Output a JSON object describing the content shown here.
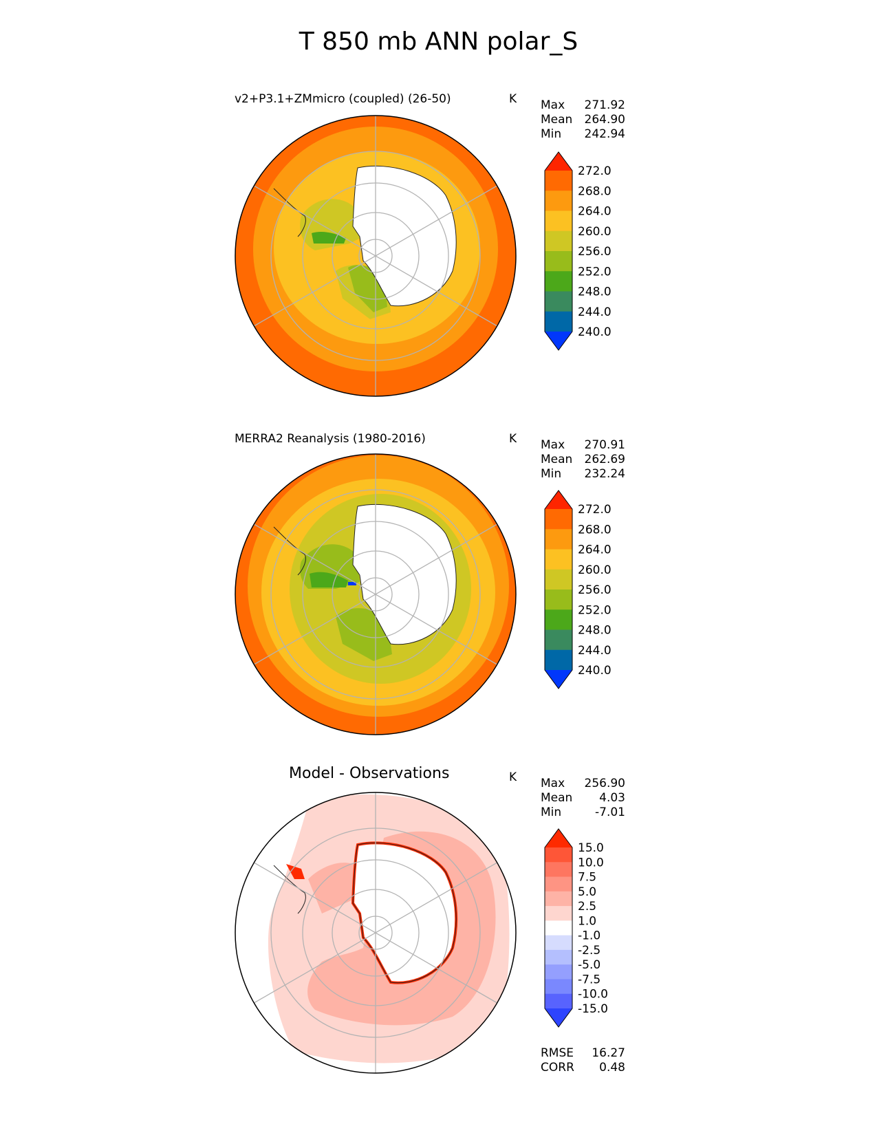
{
  "title": "T 850 mb ANN polar_S",
  "panels": [
    {
      "id": "test",
      "title": "v2+P3.1+ZMmicro (coupled) (26-50)",
      "units": "K",
      "stats": [
        {
          "label": "Max",
          "value": "271.92"
        },
        {
          "label": "Mean",
          "value": "264.90"
        },
        {
          "label": "Min",
          "value": "242.94"
        }
      ],
      "colorbar": {
        "labels": [
          "272.0",
          "268.0",
          "264.0",
          "260.0",
          "256.0",
          "252.0",
          "248.0",
          "244.0",
          "240.0"
        ],
        "colors": [
          "#fe2500",
          "#ff6a02",
          "#fd9a0f",
          "#fcc122",
          "#cfc724",
          "#98bc1b",
          "#4ca81a",
          "#3a8a5e",
          "#0068a7",
          "#0137fb"
        ]
      }
    },
    {
      "id": "reference",
      "title": "MERRA2 Reanalysis (1980-2016)",
      "units": "K",
      "stats": [
        {
          "label": "Max",
          "value": "270.91"
        },
        {
          "label": "Mean",
          "value": "262.69"
        },
        {
          "label": "Min",
          "value": "232.24"
        }
      ],
      "colorbar": {
        "labels": [
          "272.0",
          "268.0",
          "264.0",
          "260.0",
          "256.0",
          "252.0",
          "248.0",
          "244.0",
          "240.0"
        ],
        "colors": [
          "#fe2500",
          "#ff6a02",
          "#fd9a0f",
          "#fcc122",
          "#cfc724",
          "#98bc1b",
          "#4ca81a",
          "#3a8a5e",
          "#0068a7",
          "#0137fb"
        ]
      }
    },
    {
      "id": "difference",
      "title": "Model - Observations",
      "units": "K",
      "stats": [
        {
          "label": "Max",
          "value": "256.90"
        },
        {
          "label": "Mean",
          "value": "4.03"
        },
        {
          "label": "Min",
          "value": "-7.01"
        }
      ],
      "colorbar": {
        "labels": [
          "15.0",
          "10.0",
          "7.5",
          "5.0",
          "2.5",
          "1.0",
          "-1.0",
          "-2.5",
          "-5.0",
          "-7.5",
          "-10.0",
          "-15.0"
        ],
        "colors": [
          "#fe2a00",
          "#fe5637",
          "#fe7660",
          "#fe9483",
          "#feb3a6",
          "#fed6cf",
          "#ffffff",
          "#d6dcfe",
          "#b4bffe",
          "#949ffe",
          "#7a88fe",
          "#5863fe",
          "#2d44fe"
        ]
      },
      "metrics": [
        {
          "label": "RMSE",
          "value": "16.27"
        },
        {
          "label": "CORR",
          "value": "0.48"
        }
      ]
    }
  ],
  "chart_data": {
    "type": "heatmap",
    "projection": "south polar stereographic",
    "variable": "T",
    "level_mb": 850,
    "season": "ANN",
    "region": "polar_S",
    "panels": [
      {
        "title": "v2+P3.1+ZMmicro (coupled) (26-50)",
        "units": "K",
        "max": 271.92,
        "mean": 264.9,
        "min": 242.94,
        "levels": [
          240,
          244,
          248,
          252,
          256,
          260,
          264,
          268,
          272
        ],
        "extend": "both"
      },
      {
        "title": "MERRA2 Reanalysis (1980-2016)",
        "units": "K",
        "max": 270.91,
        "mean": 262.69,
        "min": 232.24,
        "levels": [
          240,
          244,
          248,
          252,
          256,
          260,
          264,
          268,
          272
        ],
        "extend": "both"
      },
      {
        "title": "Model - Observations",
        "units": "K",
        "max": 256.9,
        "mean": 4.03,
        "min": -7.01,
        "levels": [
          -15,
          -10,
          -7.5,
          -5,
          -2.5,
          -1,
          1,
          2.5,
          5,
          7.5,
          10,
          15
        ],
        "extend": "both",
        "rmse": 16.27,
        "corr": 0.48
      }
    ]
  }
}
